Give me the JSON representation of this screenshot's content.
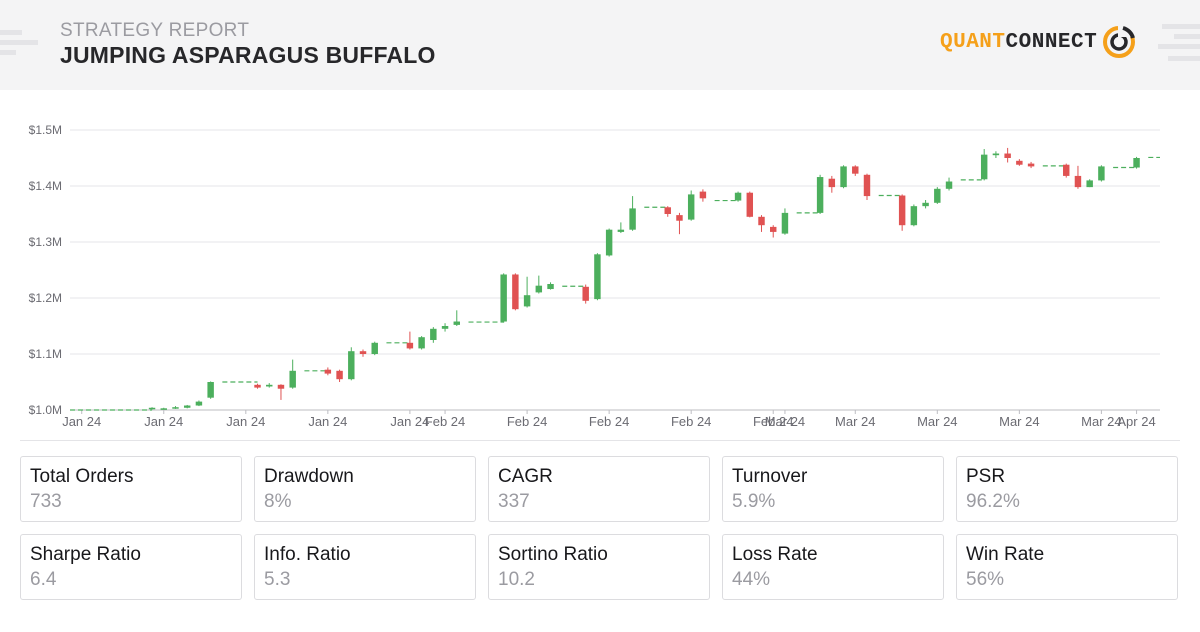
{
  "header": {
    "subtitle": "STRATEGY REPORT",
    "title": "JUMPING ASPARAGUS BUFFALO",
    "logo_left": "QUANT",
    "logo_right": "CONNECT"
  },
  "colors": {
    "up": "#4caf5d",
    "down": "#e05252",
    "brand": "#f5a01a",
    "grid": "#e6e6e9",
    "axis_text": "#6b6b72"
  },
  "chart_data": {
    "type": "candlestick",
    "title": "",
    "xlabel": "",
    "ylabel": "",
    "ylim": [
      1.0,
      1.5
    ],
    "y_unit": "millions USD",
    "yticks": [
      {
        "v": 1.0,
        "label": "$1.0M"
      },
      {
        "v": 1.1,
        "label": "$1.1M"
      },
      {
        "v": 1.2,
        "label": "$1.2M"
      },
      {
        "v": 1.3,
        "label": "$1.3M"
      },
      {
        "v": 1.4,
        "label": "$1.4M"
      },
      {
        "v": 1.5,
        "label": "$1.5M"
      }
    ],
    "x_count": 90,
    "xticks": [
      {
        "i": 1,
        "label": "Jan 24"
      },
      {
        "i": 8,
        "label": "Jan 24"
      },
      {
        "i": 15,
        "label": "Jan 24"
      },
      {
        "i": 22,
        "label": "Jan 24"
      },
      {
        "i": 29,
        "label": "Jan 24"
      },
      {
        "i": 32,
        "label": "Feb 24"
      },
      {
        "i": 39,
        "label": "Feb 24"
      },
      {
        "i": 46,
        "label": "Feb 24"
      },
      {
        "i": 53,
        "label": "Feb 24"
      },
      {
        "i": 60,
        "label": "Feb 24"
      },
      {
        "i": 61,
        "label": "Mar 24"
      },
      {
        "i": 67,
        "label": "Mar 24"
      },
      {
        "i": 74,
        "label": "Mar 24"
      },
      {
        "i": 81,
        "label": "Mar 24"
      },
      {
        "i": 88,
        "label": "Mar 24"
      },
      {
        "i": 91,
        "label": "Apr 24"
      }
    ],
    "candles": [
      [
        7,
        1.002,
        1.004,
        1.001,
        1.005
      ],
      [
        8,
        1.002,
        1.003,
        1.001,
        1.004
      ],
      [
        9,
        1.003,
        1.005,
        1.002,
        1.007
      ],
      [
        10,
        1.004,
        1.008,
        1.003,
        1.009
      ],
      [
        11,
        1.008,
        1.015,
        1.007,
        1.017
      ],
      [
        12,
        1.022,
        1.05,
        1.02,
        1.051
      ],
      [
        16,
        1.045,
        1.04,
        1.038,
        1.047
      ],
      [
        17,
        1.042,
        1.045,
        1.04,
        1.048
      ],
      [
        18,
        1.045,
        1.038,
        1.018,
        1.046
      ],
      [
        19,
        1.04,
        1.07,
        1.038,
        1.09
      ],
      [
        22,
        1.072,
        1.065,
        1.062,
        1.076
      ],
      [
        23,
        1.07,
        1.055,
        1.05,
        1.072
      ],
      [
        24,
        1.055,
        1.105,
        1.053,
        1.112
      ],
      [
        25,
        1.105,
        1.1,
        1.095,
        1.108
      ],
      [
        26,
        1.1,
        1.12,
        1.098,
        1.122
      ],
      [
        29,
        1.12,
        1.11,
        1.108,
        1.14
      ],
      [
        30,
        1.11,
        1.13,
        1.108,
        1.132
      ],
      [
        31,
        1.125,
        1.145,
        1.12,
        1.148
      ],
      [
        32,
        1.145,
        1.15,
        1.14,
        1.155
      ],
      [
        33,
        1.152,
        1.158,
        1.15,
        1.178
      ],
      [
        37,
        1.158,
        1.242,
        1.156,
        1.244
      ],
      [
        38,
        1.242,
        1.18,
        1.178,
        1.244
      ],
      [
        39,
        1.185,
        1.205,
        1.183,
        1.238
      ],
      [
        40,
        1.21,
        1.222,
        1.208,
        1.24
      ],
      [
        41,
        1.216,
        1.225,
        1.215,
        1.228
      ],
      [
        44,
        1.22,
        1.195,
        1.19,
        1.224
      ],
      [
        45,
        1.198,
        1.278,
        1.196,
        1.28
      ],
      [
        46,
        1.276,
        1.322,
        1.274,
        1.324
      ],
      [
        47,
        1.318,
        1.322,
        1.316,
        1.335
      ],
      [
        48,
        1.322,
        1.36,
        1.32,
        1.382
      ],
      [
        51,
        1.362,
        1.35,
        1.345,
        1.364
      ],
      [
        52,
        1.348,
        1.338,
        1.314,
        1.352
      ],
      [
        53,
        1.34,
        1.385,
        1.338,
        1.392
      ],
      [
        54,
        1.39,
        1.378,
        1.372,
        1.394
      ],
      [
        57,
        1.374,
        1.388,
        1.372,
        1.39
      ],
      [
        58,
        1.388,
        1.345,
        1.344,
        1.39
      ],
      [
        59,
        1.345,
        1.33,
        1.318,
        1.348
      ],
      [
        60,
        1.327,
        1.318,
        1.308,
        1.33
      ],
      [
        61,
        1.315,
        1.352,
        1.313,
        1.36
      ],
      [
        64,
        1.352,
        1.416,
        1.35,
        1.42
      ],
      [
        65,
        1.413,
        1.398,
        1.388,
        1.418
      ],
      [
        66,
        1.398,
        1.435,
        1.396,
        1.437
      ],
      [
        67,
        1.435,
        1.422,
        1.418,
        1.437
      ],
      [
        68,
        1.42,
        1.382,
        1.375,
        1.422
      ],
      [
        71,
        1.383,
        1.33,
        1.32,
        1.385
      ],
      [
        72,
        1.33,
        1.364,
        1.328,
        1.367
      ],
      [
        73,
        1.364,
        1.37,
        1.36,
        1.375
      ],
      [
        74,
        1.37,
        1.395,
        1.368,
        1.398
      ],
      [
        75,
        1.395,
        1.408,
        1.392,
        1.415
      ],
      [
        78,
        1.412,
        1.456,
        1.41,
        1.466
      ],
      [
        79,
        1.455,
        1.458,
        1.45,
        1.462
      ],
      [
        80,
        1.458,
        1.45,
        1.442,
        1.468
      ],
      [
        81,
        1.445,
        1.438,
        1.436,
        1.448
      ],
      [
        82,
        1.44,
        1.435,
        1.432,
        1.443
      ],
      [
        85,
        1.438,
        1.418,
        1.415,
        1.44
      ],
      [
        86,
        1.418,
        1.398,
        1.395,
        1.436
      ],
      [
        87,
        1.398,
        1.41,
        1.398,
        1.412
      ],
      [
        88,
        1.41,
        1.435,
        1.408,
        1.437
      ],
      [
        91,
        1.433,
        1.45,
        1.431,
        1.452
      ]
    ],
    "flat_segments": [
      [
        0,
        7,
        1.0
      ],
      [
        13,
        16,
        1.05
      ],
      [
        20,
        22,
        1.07
      ],
      [
        27,
        29,
        1.12
      ],
      [
        34,
        37,
        1.157
      ],
      [
        42,
        44,
        1.221
      ],
      [
        49,
        51,
        1.362
      ],
      [
        55,
        57,
        1.374
      ],
      [
        62,
        64,
        1.352
      ],
      [
        69,
        71,
        1.383
      ],
      [
        76,
        78,
        1.411
      ],
      [
        83,
        85,
        1.436
      ],
      [
        89,
        91,
        1.433
      ],
      [
        92,
        93,
        1.451
      ]
    ]
  },
  "metrics": [
    {
      "label": "Total Orders",
      "value": "733"
    },
    {
      "label": "Drawdown",
      "value": "8%"
    },
    {
      "label": "CAGR",
      "value": "337"
    },
    {
      "label": "Turnover",
      "value": "5.9%"
    },
    {
      "label": "PSR",
      "value": "96.2%"
    },
    {
      "label": "Sharpe Ratio",
      "value": "6.4"
    },
    {
      "label": "Info. Ratio",
      "value": "5.3"
    },
    {
      "label": "Sortino Ratio",
      "value": "10.2"
    },
    {
      "label": "Loss Rate",
      "value": "44%"
    },
    {
      "label": "Win Rate",
      "value": "56%"
    }
  ]
}
